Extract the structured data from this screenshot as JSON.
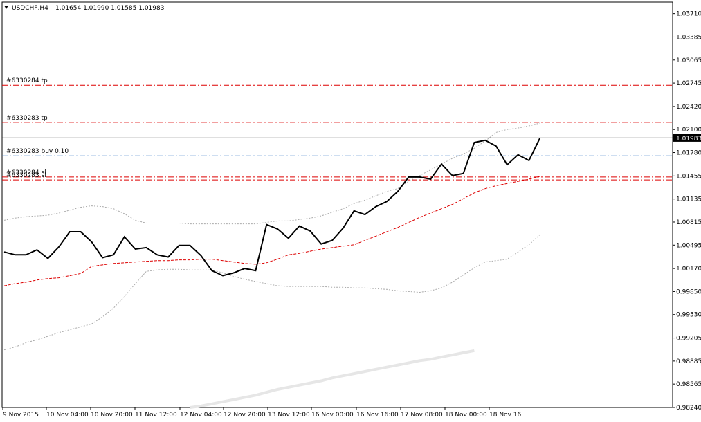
{
  "header": {
    "symbol": "USDCHF,H4",
    "ohlc": "1.01654 1.01990 1.01585 1.01983"
  },
  "chart_data": {
    "type": "line",
    "title": "USDCHF,H4",
    "ylim": [
      0.9824,
      1.0387
    ],
    "y_ticks": [
      "1.03710",
      "1.03385",
      "1.03065",
      "1.02745",
      "1.02420",
      "1.02100",
      "1.01780",
      "1.01455",
      "1.01135",
      "1.00815",
      "1.00495",
      "1.00170",
      "0.99850",
      "0.99530",
      "0.99205",
      "0.98885",
      "0.98565",
      "0.98240"
    ],
    "x_ticks": [
      "9 Nov 2015",
      "10 Nov 04:00",
      "10 Nov 20:00",
      "11 Nov 12:00",
      "12 Nov 04:00",
      "12 Nov 20:00",
      "13 Nov 12:00",
      "16 Nov 00:00",
      "16 Nov 16:00",
      "17 Nov 08:00",
      "18 Nov 00:00",
      "18 Nov 16"
    ],
    "current_price": "1.01983",
    "series": [
      {
        "name": "close",
        "color": "#000000",
        "values": [
          1.004,
          1.0036,
          1.0036,
          1.0043,
          1.0031,
          1.0047,
          1.0068,
          1.0068,
          1.0054,
          1.0032,
          1.0036,
          1.0061,
          1.0044,
          1.0046,
          1.0036,
          1.0033,
          1.0049,
          1.0049,
          1.0035,
          1.0014,
          1.0007,
          1.0011,
          1.0017,
          1.0014,
          1.0078,
          1.0072,
          1.0059,
          1.0076,
          1.0069,
          1.0051,
          1.0056,
          1.0073,
          1.0097,
          1.0092,
          1.0103,
          1.011,
          1.0124,
          1.0144,
          1.0144,
          1.0141,
          1.0162,
          1.0146,
          1.0149,
          1.0192,
          1.0195,
          1.0187,
          1.0161,
          1.0175,
          1.0167,
          1.0198
        ]
      },
      {
        "name": "moving-average",
        "color": "#dd0000",
        "values": [
          0.9993,
          0.9996,
          0.9998,
          1.0001,
          1.0003,
          1.0004,
          1.0007,
          1.001,
          1.002,
          1.0022,
          1.0024,
          1.0025,
          1.0026,
          1.0027,
          1.0028,
          1.0028,
          1.0029,
          1.0029,
          1.003,
          1.003,
          1.0028,
          1.0026,
          1.0024,
          1.0023,
          1.0025,
          1.003,
          1.0036,
          1.0038,
          1.0041,
          1.0044,
          1.0046,
          1.0048,
          1.005,
          1.0056,
          1.0062,
          1.0068,
          1.0074,
          1.0081,
          1.0088,
          1.0094,
          1.01,
          1.0106,
          1.0114,
          1.0122,
          1.0128,
          1.0132,
          1.0135,
          1.0138,
          1.0141,
          1.0145
        ]
      },
      {
        "name": "band-upper",
        "color": "#aaaaaa",
        "values": [
          1.0084,
          1.0087,
          1.0089,
          1.009,
          1.0091,
          1.0094,
          1.0098,
          1.0102,
          1.0104,
          1.0103,
          1.01,
          1.0093,
          1.0084,
          1.008,
          1.008,
          1.008,
          1.008,
          1.0079,
          1.0079,
          1.0079,
          1.0079,
          1.0079,
          1.0079,
          1.0079,
          1.0081,
          1.0083,
          1.0083,
          1.0085,
          1.0087,
          1.009,
          1.0095,
          1.01,
          1.0107,
          1.0112,
          1.0118,
          1.0124,
          1.0128,
          1.0138,
          1.0146,
          1.0154,
          1.0162,
          1.017,
          1.0176,
          1.0184,
          1.0194,
          1.0206,
          1.021,
          1.0212,
          1.0215,
          1.0219
        ]
      },
      {
        "name": "band-lower",
        "color": "#aaaaaa",
        "values": [
          0.9904,
          0.9908,
          0.9914,
          0.9918,
          0.9923,
          0.9928,
          0.9932,
          0.9936,
          0.994,
          0.995,
          0.9962,
          0.9978,
          0.9996,
          1.0013,
          1.0015,
          1.0016,
          1.0016,
          1.0015,
          1.0015,
          1.0015,
          1.0011,
          1.0006,
          1.0002,
          0.9999,
          0.9996,
          0.9993,
          0.9992,
          0.9992,
          0.9992,
          0.9992,
          0.9991,
          0.9991,
          0.999,
          0.999,
          0.9989,
          0.9988,
          0.9986,
          0.9985,
          0.9984,
          0.9986,
          0.999,
          0.9998,
          1.0008,
          1.0018,
          1.0026,
          1.0028,
          1.003,
          1.004,
          1.005,
          1.0064
        ]
      },
      {
        "name": "long-average",
        "color": "#e6e6e6",
        "values": [
          0.9824,
          0.9826,
          0.9829,
          0.9832,
          0.9835,
          0.9838,
          0.9841,
          0.9845,
          0.9849,
          0.9852,
          0.9855,
          0.9858,
          0.9861,
          0.9865,
          0.9868,
          0.9871,
          0.9874,
          0.9877,
          0.988,
          0.9883,
          0.9886,
          0.9889,
          0.9891,
          0.9894,
          0.9897,
          0.99,
          0.9903
        ]
      }
    ],
    "levels": [
      {
        "label": "#6330284 tp",
        "value": 1.02715,
        "color": "#dd0000",
        "style": "dash-dot"
      },
      {
        "label": "#6330283 tp",
        "value": 1.022,
        "color": "#dd0000",
        "style": "dash-dot"
      },
      {
        "label": "#6330283 buy 0.10",
        "value": 1.01735,
        "color": "#3a7fc8",
        "style": "dash-dot"
      },
      {
        "label": "#6330284 sl",
        "value": 1.0144,
        "color": "#dd0000",
        "style": "dash-dot"
      },
      {
        "label": "#6330283 sl",
        "value": 1.014,
        "color": "#dd0000",
        "style": "dash-dot"
      }
    ]
  }
}
